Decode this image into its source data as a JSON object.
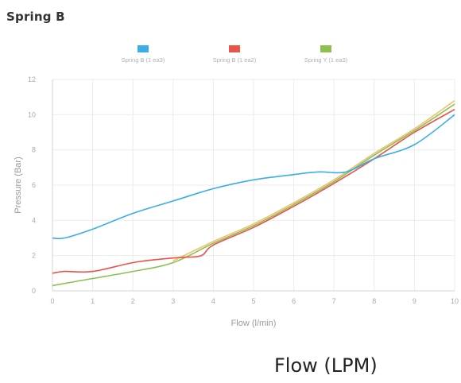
{
  "page_title": "Spring B",
  "caption": "Flow (LPM)",
  "chart_data": {
    "type": "line",
    "title": "",
    "xlabel": "Flow (l/min)",
    "ylabel": "Pressure (Bar)",
    "xlim": [
      0,
      10
    ],
    "ylim": [
      0,
      12
    ],
    "x_ticks": [
      "0",
      "1",
      "2",
      "3",
      "4",
      "5",
      "6",
      "7",
      "8",
      "9",
      "10"
    ],
    "y_ticks": [
      "0",
      "2",
      "4",
      "6",
      "8",
      "10",
      "12"
    ],
    "grid": true,
    "legend_position": "top-center",
    "series": [
      {
        "name": "Spring B (1 ea3)",
        "color": "#3aaee8",
        "points": [
          [
            0,
            3.0
          ],
          [
            0.3,
            3.0
          ],
          [
            1,
            3.5
          ],
          [
            2,
            4.4
          ],
          [
            3,
            5.1
          ],
          [
            4,
            5.8
          ],
          [
            5,
            6.3
          ],
          [
            6,
            6.6
          ],
          [
            6.6,
            6.75
          ],
          [
            7.3,
            6.75
          ],
          [
            8,
            7.5
          ],
          [
            9,
            8.3
          ],
          [
            10,
            10.0
          ]
        ]
      },
      {
        "name": "Spring B (1 ea2)",
        "color": "#e8534a",
        "points": [
          [
            0,
            1.0
          ],
          [
            0.3,
            1.1
          ],
          [
            1,
            1.1
          ],
          [
            2,
            1.6
          ],
          [
            2.7,
            1.8
          ],
          [
            3.2,
            1.9
          ],
          [
            3.7,
            2.0
          ],
          [
            4,
            2.6
          ],
          [
            5,
            3.6
          ],
          [
            6,
            4.8
          ],
          [
            7,
            6.1
          ],
          [
            8,
            7.5
          ],
          [
            9,
            9.0
          ],
          [
            10,
            10.3
          ]
        ]
      },
      {
        "name": "Spring Y (1 ea3)",
        "color": "#8cc151",
        "points": [
          [
            0,
            0.3
          ],
          [
            1,
            0.7
          ],
          [
            2,
            1.1
          ],
          [
            3,
            1.6
          ],
          [
            4,
            2.7
          ],
          [
            5,
            3.7
          ],
          [
            6,
            4.9
          ],
          [
            7,
            6.2
          ],
          [
            8,
            7.7
          ],
          [
            9,
            9.1
          ],
          [
            10,
            10.6
          ]
        ]
      },
      {
        "name": "",
        "color": "#f0c070",
        "points": [
          [
            3,
            1.7
          ],
          [
            4,
            2.8
          ],
          [
            5,
            3.8
          ],
          [
            6,
            5.0
          ],
          [
            7,
            6.3
          ],
          [
            8,
            7.8
          ],
          [
            9,
            9.2
          ],
          [
            10,
            10.8
          ]
        ]
      }
    ]
  }
}
